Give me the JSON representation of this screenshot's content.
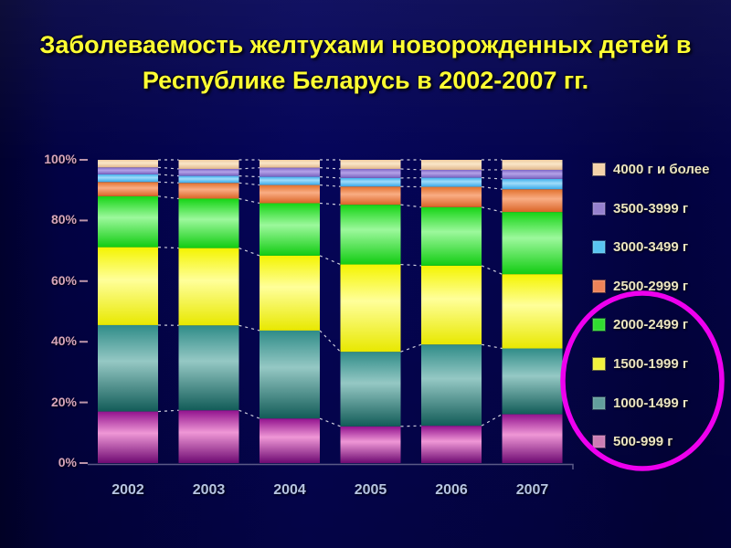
{
  "slide": {
    "title_line1": "Заболеваемость желтухами новорожденных детей в",
    "title_line2": "Республике Беларусь в 2002-2007 гг.",
    "title_color": "#ffff33"
  },
  "chart_data": {
    "type": "bar",
    "subtype": "100-percent-stacked-bar",
    "title": "Заболеваемость желтухами новорожденных детей в Республике Беларусь в 2002-2007 гг.",
    "categories": [
      "2002",
      "2003",
      "2004",
      "2005",
      "2006",
      "2007"
    ],
    "stack_order": "bottom_to_top",
    "series": [
      {
        "name": "500-999 г",
        "swatch": "#cc7cb4",
        "gradient": [
          "#92128e",
          "#ef97d6",
          "#6e0a72"
        ],
        "values": [
          17.0,
          17.4,
          14.7,
          12.1,
          12.3,
          16.1
        ]
      },
      {
        "name": "1000-1499 г",
        "swatch": "#629e9c",
        "gradient": [
          "#2f8c88",
          "#95c8c4",
          "#125c58"
        ],
        "values": [
          28.5,
          28.0,
          29.0,
          24.6,
          26.8,
          21.7
        ]
      },
      {
        "name": "1500-1999 г",
        "swatch": "#f2f23c",
        "gradient": [
          "#f4f400",
          "#ffff9a",
          "#e8e800"
        ],
        "values": [
          25.7,
          25.5,
          24.7,
          28.8,
          26.0,
          24.5
        ]
      },
      {
        "name": "2000-2499 г",
        "swatch": "#30dc30",
        "gradient": [
          "#15d415",
          "#9cf89c",
          "#12cc12"
        ],
        "values": [
          16.8,
          16.3,
          17.3,
          19.7,
          19.3,
          20.5
        ]
      },
      {
        "name": "2500-2999 г",
        "swatch": "#ee8258",
        "gradient": [
          "#e2702c",
          "#f9ad84",
          "#da6426"
        ],
        "values": [
          4.7,
          5.2,
          6.0,
          6.0,
          6.7,
          7.5
        ]
      },
      {
        "name": "3000-3499 г",
        "swatch": "#58c4f0",
        "gradient": [
          "#40b0ec",
          "#a0dcfa",
          "#38a8e8"
        ],
        "values": [
          2.5,
          2.3,
          2.7,
          2.8,
          3.0,
          3.4
        ]
      },
      {
        "name": "3500-3999 г",
        "swatch": "#9580ce",
        "gradient": [
          "#7e66c6",
          "#b4a2e8",
          "#7660be"
        ],
        "values": [
          2.3,
          2.3,
          3.0,
          3.0,
          2.6,
          3.0
        ]
      },
      {
        "name": "4000 г и более",
        "swatch": "#f4d2a8",
        "gradient": [
          "#eecba0",
          "#fae6c8",
          "#e2b88c"
        ],
        "values": [
          2.5,
          3.0,
          2.6,
          3.0,
          3.3,
          3.3
        ]
      }
    ],
    "yticks": [
      "0%",
      "20%",
      "40%",
      "60%",
      "80%",
      "100%"
    ],
    "ytick_levels": [
      0,
      20,
      40,
      60,
      80,
      100
    ],
    "ylim": [
      0,
      100
    ],
    "xlabel": "",
    "ylabel": "",
    "grid": false,
    "legend_position": "right",
    "legend_order": "top_to_bottom_reversed_stack",
    "connector_lines": "white-dashed-between-bars",
    "colors": {
      "y_axis_label": "#d8a6ba",
      "x_axis_label": "#b6c4e2",
      "legend_text": "#ece5c0",
      "axis_line": "#5a5a86",
      "tick_mark": "#bb95aa",
      "connector": "#e3e3ec"
    },
    "annotations": [
      {
        "type": "ellipse-highlight",
        "color": "#ee00ee",
        "around_legend_items": [
          "2000-2499 г",
          "1500-1999 г",
          "1000-1499 г",
          "500-999 г"
        ]
      }
    ]
  }
}
